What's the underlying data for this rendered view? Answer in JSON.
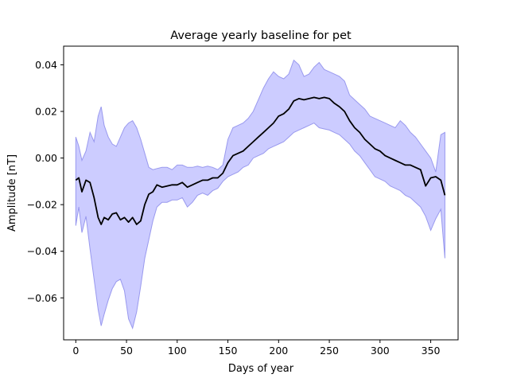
{
  "chart_data": {
    "type": "area",
    "title": "Average yearly baseline for pet",
    "xlabel": "Days of year",
    "ylabel": "Amplitude [nT]",
    "xlim": [
      -12,
      377
    ],
    "ylim": [
      -0.078,
      0.048
    ],
    "xticks": [
      0,
      50,
      100,
      150,
      200,
      250,
      300,
      350
    ],
    "xtick_labels": [
      "0",
      "50",
      "100",
      "150",
      "200",
      "250",
      "300",
      "350"
    ],
    "yticks": [
      -0.06,
      -0.04,
      -0.02,
      0.0,
      0.02,
      0.04
    ],
    "ytick_labels": [
      "−0.06",
      "−0.04",
      "−0.02",
      "0.00",
      "0.02",
      "0.04"
    ],
    "grid": false,
    "legend": "none",
    "colors": {
      "line": "#000000",
      "band_fill": "#ccccff",
      "band_edge": "#9999ee"
    },
    "series": [
      {
        "role": "mean",
        "x": [
          0,
          3,
          6,
          10,
          14,
          18,
          22,
          25,
          28,
          32,
          36,
          40,
          44,
          48,
          52,
          56,
          60,
          64,
          68,
          72,
          76,
          80,
          85,
          90,
          95,
          100,
          105,
          110,
          115,
          120,
          125,
          130,
          135,
          140,
          145,
          150,
          155,
          160,
          165,
          170,
          175,
          180,
          185,
          190,
          195,
          200,
          205,
          210,
          215,
          220,
          225,
          230,
          235,
          240,
          245,
          250,
          255,
          260,
          265,
          270,
          275,
          280,
          285,
          290,
          295,
          300,
          305,
          310,
          315,
          320,
          325,
          330,
          335,
          340,
          345,
          350,
          355,
          360,
          364
        ],
        "y": [
          -0.0095,
          -0.0085,
          -0.0145,
          -0.0095,
          -0.0105,
          -0.017,
          -0.0255,
          -0.0285,
          -0.0255,
          -0.0265,
          -0.024,
          -0.0235,
          -0.0265,
          -0.0255,
          -0.0275,
          -0.0255,
          -0.0285,
          -0.027,
          -0.02,
          -0.0155,
          -0.0145,
          -0.0115,
          -0.0125,
          -0.012,
          -0.0115,
          -0.0115,
          -0.0105,
          -0.0125,
          -0.0115,
          -0.0105,
          -0.0095,
          -0.0095,
          -0.0085,
          -0.0085,
          -0.0065,
          -0.002,
          0.001,
          0.002,
          0.003,
          0.005,
          0.007,
          0.009,
          0.011,
          0.013,
          0.015,
          0.018,
          0.019,
          0.021,
          0.0245,
          0.0255,
          0.025,
          0.0255,
          0.026,
          0.0255,
          0.026,
          0.0255,
          0.0235,
          0.022,
          0.02,
          0.016,
          0.013,
          0.011,
          0.008,
          0.006,
          0.004,
          0.003,
          0.001,
          0.0,
          -0.001,
          -0.002,
          -0.003,
          -0.003,
          -0.004,
          -0.005,
          -0.012,
          -0.0085,
          -0.008,
          -0.0095,
          -0.016
        ]
      },
      {
        "role": "upper",
        "x": [
          0,
          3,
          6,
          10,
          14,
          18,
          22,
          25,
          28,
          32,
          36,
          40,
          44,
          48,
          52,
          56,
          60,
          64,
          68,
          72,
          76,
          80,
          85,
          90,
          95,
          100,
          105,
          110,
          115,
          120,
          125,
          130,
          135,
          140,
          145,
          150,
          155,
          160,
          165,
          170,
          175,
          180,
          185,
          190,
          195,
          200,
          205,
          210,
          215,
          220,
          225,
          230,
          235,
          240,
          245,
          250,
          255,
          260,
          265,
          270,
          275,
          280,
          285,
          290,
          295,
          300,
          305,
          310,
          315,
          320,
          325,
          330,
          335,
          340,
          345,
          350,
          355,
          360,
          364
        ],
        "y": [
          0.009,
          0.005,
          -0.001,
          0.003,
          0.011,
          0.007,
          0.018,
          0.022,
          0.014,
          0.009,
          0.006,
          0.005,
          0.009,
          0.013,
          0.015,
          0.016,
          0.013,
          0.008,
          0.002,
          -0.004,
          -0.005,
          -0.0045,
          -0.004,
          -0.004,
          -0.005,
          -0.003,
          -0.003,
          -0.004,
          -0.004,
          -0.0035,
          -0.004,
          -0.0035,
          -0.004,
          -0.005,
          -0.003,
          0.008,
          0.013,
          0.014,
          0.015,
          0.017,
          0.02,
          0.025,
          0.03,
          0.034,
          0.037,
          0.035,
          0.034,
          0.036,
          0.042,
          0.04,
          0.035,
          0.036,
          0.039,
          0.041,
          0.038,
          0.037,
          0.036,
          0.035,
          0.033,
          0.027,
          0.025,
          0.023,
          0.021,
          0.018,
          0.017,
          0.016,
          0.015,
          0.014,
          0.013,
          0.016,
          0.014,
          0.011,
          0.009,
          0.006,
          0.003,
          0.0,
          -0.006,
          0.01,
          0.011
        ]
      },
      {
        "role": "lower",
        "x": [
          0,
          3,
          6,
          10,
          14,
          18,
          22,
          25,
          28,
          32,
          36,
          40,
          44,
          48,
          52,
          56,
          60,
          64,
          68,
          72,
          76,
          80,
          85,
          90,
          95,
          100,
          105,
          110,
          115,
          120,
          125,
          130,
          135,
          140,
          145,
          150,
          155,
          160,
          165,
          170,
          175,
          180,
          185,
          190,
          195,
          200,
          205,
          210,
          215,
          220,
          225,
          230,
          235,
          240,
          245,
          250,
          255,
          260,
          265,
          270,
          275,
          280,
          285,
          290,
          295,
          300,
          305,
          310,
          315,
          320,
          325,
          330,
          335,
          340,
          345,
          350,
          355,
          360,
          364
        ],
        "y": [
          -0.029,
          -0.021,
          -0.032,
          -0.025,
          -0.039,
          -0.052,
          -0.065,
          -0.072,
          -0.067,
          -0.061,
          -0.056,
          -0.053,
          -0.052,
          -0.057,
          -0.069,
          -0.073,
          -0.066,
          -0.055,
          -0.043,
          -0.035,
          -0.027,
          -0.021,
          -0.019,
          -0.019,
          -0.018,
          -0.018,
          -0.017,
          -0.021,
          -0.019,
          -0.016,
          -0.015,
          -0.016,
          -0.014,
          -0.013,
          -0.01,
          -0.008,
          -0.007,
          -0.006,
          -0.004,
          -0.003,
          0.0,
          0.001,
          0.002,
          0.004,
          0.005,
          0.006,
          0.007,
          0.009,
          0.011,
          0.012,
          0.013,
          0.014,
          0.015,
          0.013,
          0.0125,
          0.012,
          0.011,
          0.01,
          0.008,
          0.006,
          0.003,
          0.001,
          -0.002,
          -0.005,
          -0.008,
          -0.009,
          -0.01,
          -0.012,
          -0.013,
          -0.014,
          -0.016,
          -0.017,
          -0.019,
          -0.021,
          -0.025,
          -0.031,
          -0.026,
          -0.022,
          -0.043
        ]
      }
    ]
  }
}
